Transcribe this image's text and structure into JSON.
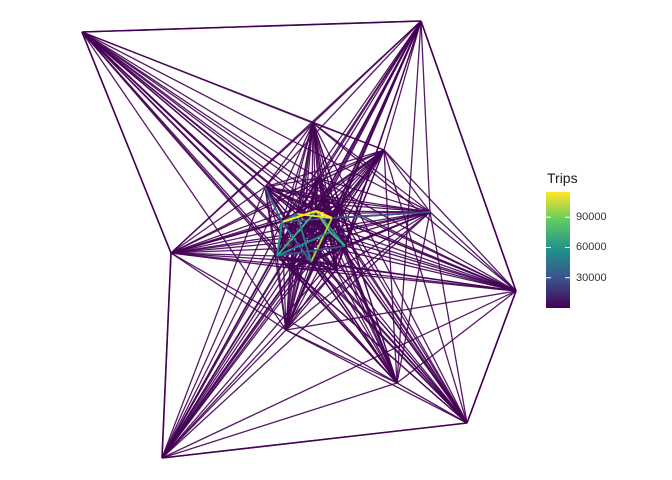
{
  "legend": {
    "title": "Trips",
    "ticks": [
      {
        "label": "30000",
        "value": 30000
      },
      {
        "label": "60000",
        "value": 60000
      },
      {
        "label": "90000",
        "value": 90000
      }
    ],
    "range": [
      0,
      115000
    ],
    "palette": [
      "#440154",
      "#3b528b",
      "#21908d",
      "#5dc963",
      "#fde725"
    ]
  },
  "colors": {
    "edge_default": "#440154",
    "background": "#ffffff"
  }
}
